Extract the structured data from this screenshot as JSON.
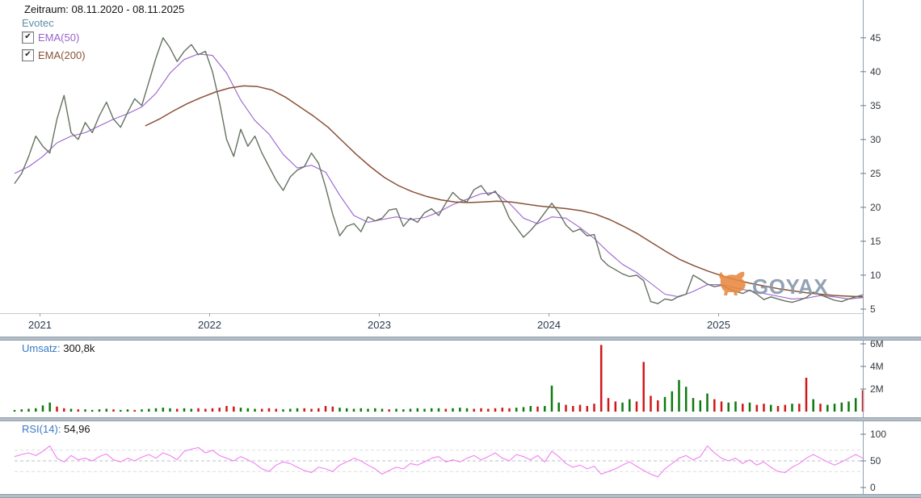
{
  "header": {
    "zeitraum": "Zeitraum: 08.11.2020 - 08.11.2025",
    "instrument": "Evotec",
    "indicators": [
      {
        "label": "EMA(50)",
        "checked": true
      },
      {
        "label": "EMA(200)",
        "checked": true
      }
    ]
  },
  "panels": {
    "volume": {
      "label": "Umsatz:",
      "value": "300,8k"
    },
    "rsi": {
      "label": "RSI(14):",
      "value": "54,96"
    }
  },
  "watermark": {
    "text": "GOYAX"
  },
  "icons": {
    "check": "✔"
  },
  "colors": {
    "text_dark": "#141414",
    "instrument": "#5e8fa3",
    "label_blue": "#3c79c2",
    "ema50": "#9a63ce",
    "ema200": "#8a5136",
    "price": "#657260",
    "volume_up": "#0c7a0c",
    "volume_down": "#d01818",
    "rsi": "#f27ff2",
    "axis_line": "#93a1ad",
    "splitter": "#b3bec6",
    "watermark_text": "#8496ab",
    "watermark_bull": "#e8883f"
  },
  "chart_data": [
    {
      "id": "price",
      "type": "line",
      "title": "Evotec Kurs (EUR)",
      "x_range": [
        2020.85,
        2025.85
      ],
      "x_ticks": [
        2021,
        2022,
        2023,
        2024,
        2025
      ],
      "x_tick_labels": [
        "2021",
        "2022",
        "2023",
        "2024",
        "2025"
      ],
      "ylim": [
        4.4,
        46.4
      ],
      "y_ticks": [
        5,
        10,
        15,
        20,
        25,
        30,
        35,
        40,
        45
      ],
      "y_tick_labels": [
        "5",
        "10",
        "15",
        "20",
        "25",
        "30",
        "35",
        "40",
        "45"
      ],
      "x_axis_line": true,
      "grid": false,
      "legend_position": "top-left",
      "series": [
        {
          "name": "EMA(50)",
          "color": "#9a63ce",
          "width": 1.1,
          "values": [
            25.0,
            26.0,
            27.5,
            29.5,
            30.5,
            31.0,
            32.0,
            33.0,
            33.8,
            34.8,
            36.8,
            39.8,
            41.8,
            42.6,
            42.4,
            39.8,
            35.8,
            32.8,
            30.8,
            27.8,
            25.8,
            26.2,
            25.2,
            21.8,
            18.8,
            17.8,
            18.2,
            18.6,
            18.2,
            18.5,
            19.3,
            20.4,
            21.2,
            22.0,
            22.2,
            20.6,
            18.4,
            17.6,
            18.6,
            18.4,
            17.0,
            15.4,
            13.4,
            11.6,
            10.4,
            8.8,
            7.2,
            6.8,
            7.6,
            8.6,
            8.6,
            8.1,
            7.7,
            7.3,
            6.9,
            6.5,
            6.6,
            7.0,
            6.8,
            6.5,
            6.7
          ]
        },
        {
          "name": "EMA(200)",
          "color": "#8a5136",
          "width": 1.5,
          "x_range": [
            2021.62,
            2025.85
          ],
          "values": [
            32.0,
            33.0,
            34.2,
            35.3,
            36.2,
            37.0,
            37.6,
            37.9,
            37.8,
            37.3,
            36.2,
            34.8,
            33.4,
            31.8,
            29.8,
            27.8,
            26.0,
            24.4,
            23.2,
            22.3,
            21.6,
            21.1,
            20.8,
            20.7,
            20.8,
            20.9,
            20.8,
            20.5,
            20.2,
            20.0,
            19.8,
            19.5,
            19.0,
            18.2,
            17.2,
            16.1,
            14.8,
            13.5,
            12.3,
            11.4,
            10.6,
            9.9,
            9.3,
            8.8,
            8.4,
            8.0,
            7.7,
            7.4,
            7.2,
            7.0,
            6.9,
            6.8
          ]
        },
        {
          "name": "Evotec",
          "color": "#657260",
          "width": 1.4,
          "values": [
            23.5,
            25.0,
            27.5,
            30.5,
            29.0,
            28.0,
            33.0,
            36.5,
            31.0,
            30.0,
            32.5,
            31.0,
            33.5,
            35.5,
            33.0,
            31.8,
            34.0,
            36.0,
            35.0,
            38.5,
            42.0,
            45.0,
            43.5,
            41.5,
            43.0,
            44.0,
            42.5,
            43.0,
            40.0,
            35.5,
            30.0,
            27.5,
            31.5,
            29.0,
            30.5,
            28.0,
            26.0,
            24.0,
            22.5,
            24.5,
            25.5,
            26.0,
            28.0,
            26.5,
            23.0,
            19.0,
            15.8,
            17.2,
            17.6,
            16.4,
            18.6,
            18.0,
            18.4,
            19.6,
            19.8,
            17.2,
            18.4,
            17.8,
            19.2,
            19.8,
            18.8,
            20.6,
            22.2,
            21.2,
            20.8,
            22.6,
            23.2,
            21.8,
            22.4,
            20.8,
            18.4,
            17.0,
            15.6,
            16.6,
            17.8,
            19.2,
            20.6,
            19.2,
            17.4,
            16.4,
            16.8,
            15.8,
            16.0,
            12.4,
            11.4,
            10.8,
            10.2,
            9.8,
            10.0,
            9.2,
            6.1,
            5.8,
            6.5,
            6.3,
            6.9,
            7.2,
            10.0,
            9.4,
            8.7,
            8.3,
            8.5,
            8.0,
            7.6,
            7.3,
            7.8,
            7.2,
            6.4,
            6.8,
            6.5,
            6.2,
            6.0,
            6.3,
            6.7,
            7.5,
            7.1,
            6.7,
            6.3,
            6.1,
            6.5,
            6.8,
            7.1
          ]
        }
      ]
    },
    {
      "id": "volume",
      "type": "bar",
      "title": "Umsatz",
      "x_range": [
        2020.85,
        2025.85
      ],
      "ylim": [
        0,
        6.0
      ],
      "y_ticks": [
        2,
        4,
        6
      ],
      "y_tick_labels": [
        "2M",
        "4M",
        "6M"
      ],
      "up_color": "#0c7a0c",
      "down_color": "#d01818",
      "values": [
        0.15,
        0.2,
        0.25,
        0.3,
        0.55,
        0.8,
        0.45,
        0.3,
        0.25,
        0.2,
        0.2,
        0.15,
        0.2,
        0.25,
        0.2,
        0.15,
        0.2,
        0.15,
        0.2,
        0.25,
        0.3,
        0.35,
        0.3,
        0.25,
        0.3,
        0.25,
        0.3,
        0.25,
        0.3,
        0.35,
        0.5,
        0.45,
        0.35,
        0.3,
        0.25,
        0.25,
        0.3,
        0.25,
        0.2,
        0.25,
        0.3,
        0.3,
        0.25,
        0.3,
        0.5,
        0.45,
        0.35,
        0.3,
        0.25,
        0.3,
        0.25,
        0.3,
        0.25,
        0.2,
        0.25,
        0.2,
        0.25,
        0.3,
        0.25,
        0.3,
        0.3,
        0.25,
        0.3,
        0.35,
        0.3,
        0.25,
        0.3,
        0.25,
        0.3,
        0.35,
        0.3,
        0.35,
        0.4,
        0.5,
        0.45,
        0.5,
        2.3,
        0.8,
        0.6,
        0.5,
        0.6,
        0.5,
        0.7,
        5.9,
        1.2,
        0.9,
        0.8,
        1.1,
        0.9,
        4.4,
        1.4,
        1.0,
        1.3,
        1.8,
        2.8,
        2.2,
        1.2,
        1.0,
        1.6,
        1.1,
        0.9,
        0.8,
        0.9,
        0.7,
        0.8,
        0.6,
        0.7,
        0.6,
        0.5,
        0.6,
        0.7,
        0.7,
        3.0,
        1.1,
        0.7,
        0.6,
        0.7,
        0.8,
        0.9,
        1.2,
        1.9
      ],
      "updown_rle": [
        [
          6,
          "u"
        ],
        [
          2,
          "d"
        ],
        [
          1,
          "u"
        ],
        [
          1,
          "d"
        ],
        [
          4,
          "u"
        ],
        [
          1,
          "d"
        ],
        [
          2,
          "u"
        ],
        [
          1,
          "d"
        ],
        [
          5,
          "u"
        ],
        [
          1,
          "d"
        ],
        [
          2,
          "u"
        ],
        [
          6,
          "d"
        ],
        [
          3,
          "u"
        ],
        [
          3,
          "d"
        ],
        [
          3,
          "u"
        ],
        [
          5,
          "d"
        ],
        [
          7,
          "u"
        ],
        [
          1,
          "d"
        ],
        [
          7,
          "u"
        ],
        [
          1,
          "d"
        ],
        [
          3,
          "u"
        ],
        [
          6,
          "d"
        ],
        [
          3,
          "u"
        ],
        [
          1,
          "d"
        ],
        [
          3,
          "u"
        ],
        [
          8,
          "d"
        ],
        [
          2,
          "u"
        ],
        [
          4,
          "d"
        ],
        [
          7,
          "u"
        ],
        [
          2,
          "d"
        ],
        [
          2,
          "u"
        ],
        [
          1,
          "d"
        ],
        [
          1,
          "u"
        ],
        [
          2,
          "d"
        ],
        [
          1,
          "u"
        ],
        [
          2,
          "d"
        ],
        [
          1,
          "u"
        ],
        [
          2,
          "d"
        ],
        [
          1,
          "u"
        ],
        [
          1,
          "d"
        ],
        [
          5,
          "u"
        ],
        [
          1,
          "d"
        ]
      ]
    },
    {
      "id": "rsi",
      "type": "line",
      "title": "RSI(14)",
      "x_range": [
        2020.85,
        2025.85
      ],
      "ylim": [
        0,
        100
      ],
      "y_ticks": [
        0,
        50,
        100
      ],
      "y_tick_labels": [
        "0",
        "50",
        "100"
      ],
      "guides": [
        {
          "y": 70,
          "color": "#d9dde1"
        },
        {
          "y": 50,
          "color": "#b9c1c7"
        },
        {
          "y": 30,
          "color": "#d9dde1"
        }
      ],
      "series": [
        {
          "name": "RSI(14)",
          "color": "#f27ff2",
          "width": 1.1,
          "values": [
            58,
            62,
            65,
            60,
            68,
            78,
            55,
            48,
            60,
            52,
            55,
            50,
            58,
            63,
            52,
            48,
            55,
            50,
            57,
            62,
            55,
            65,
            60,
            52,
            68,
            72,
            75,
            65,
            70,
            60,
            55,
            50,
            58,
            52,
            45,
            35,
            30,
            42,
            48,
            45,
            38,
            32,
            28,
            38,
            35,
            30,
            42,
            48,
            55,
            50,
            42,
            35,
            25,
            32,
            38,
            35,
            45,
            42,
            48,
            55,
            58,
            48,
            52,
            48,
            55,
            60,
            52,
            58,
            65,
            55,
            50,
            62,
            58,
            52,
            60,
            48,
            68,
            58,
            45,
            38,
            42,
            35,
            40,
            25,
            30,
            35,
            42,
            48,
            40,
            32,
            25,
            20,
            35,
            45,
            55,
            60,
            52,
            58,
            78,
            65,
            55,
            50,
            55,
            45,
            52,
            42,
            48,
            38,
            30,
            28,
            38,
            45,
            55,
            62,
            55,
            48,
            42,
            48,
            55,
            62,
            55
          ]
        }
      ]
    }
  ]
}
